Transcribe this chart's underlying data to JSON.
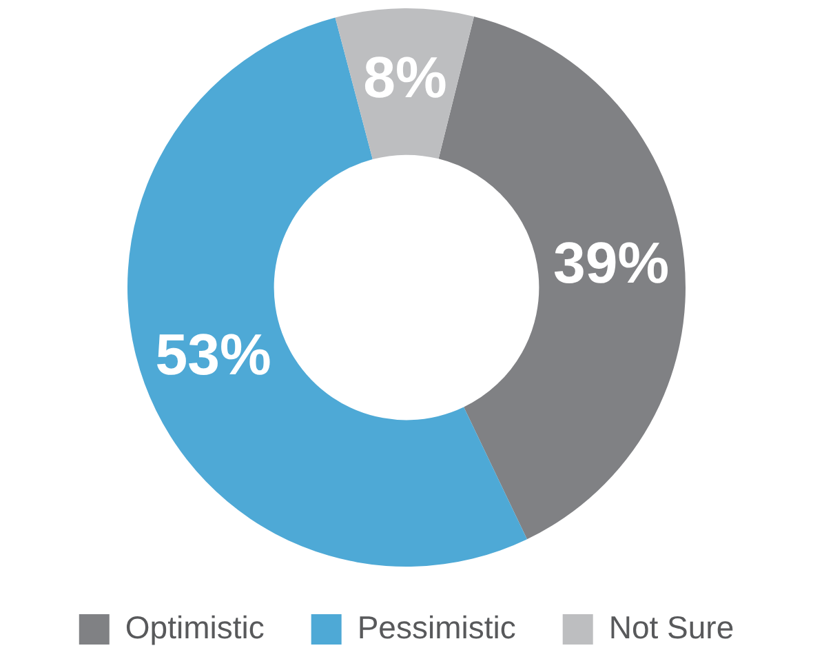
{
  "chart_data": {
    "type": "donut",
    "categories": [
      "Optimistic",
      "Pessimistic",
      "Not Sure"
    ],
    "values": [
      39,
      53,
      8
    ],
    "colors": [
      "#808184",
      "#4ea9d6",
      "#bdbec0"
    ],
    "value_labels": [
      "39%",
      "53%",
      "8%"
    ],
    "legend": "bottom"
  }
}
